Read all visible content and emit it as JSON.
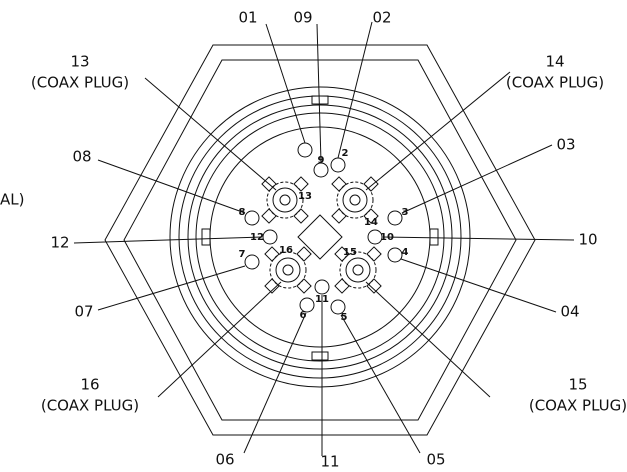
{
  "callouts": [
    {
      "label": "01"
    },
    {
      "label": "09"
    },
    {
      "label": "02"
    },
    {
      "label": "13",
      "note": "(COAX PLUG)"
    },
    {
      "label": "14",
      "note": "(COAX PLUG)"
    },
    {
      "label": "03"
    },
    {
      "label": "08"
    },
    {
      "label": "AL)"
    },
    {
      "label": "12"
    },
    {
      "label": "10"
    },
    {
      "label": "07"
    },
    {
      "label": "04"
    },
    {
      "label": "16",
      "note": "(COAX PLUG)"
    },
    {
      "label": "15",
      "note": "(COAX PLUG)"
    },
    {
      "label": "06"
    },
    {
      "label": "11"
    },
    {
      "label": "05"
    }
  ],
  "pins": [
    {
      "label": "9"
    },
    {
      "label": "2"
    },
    {
      "label": "8"
    },
    {
      "label": "3"
    },
    {
      "label": "12"
    },
    {
      "label": "10"
    },
    {
      "label": "7"
    },
    {
      "label": "4"
    },
    {
      "label": "6"
    },
    {
      "label": "11"
    },
    {
      "label": "5"
    },
    {
      "label": "13"
    },
    {
      "label": "14"
    },
    {
      "label": "16"
    },
    {
      "label": "15"
    }
  ]
}
